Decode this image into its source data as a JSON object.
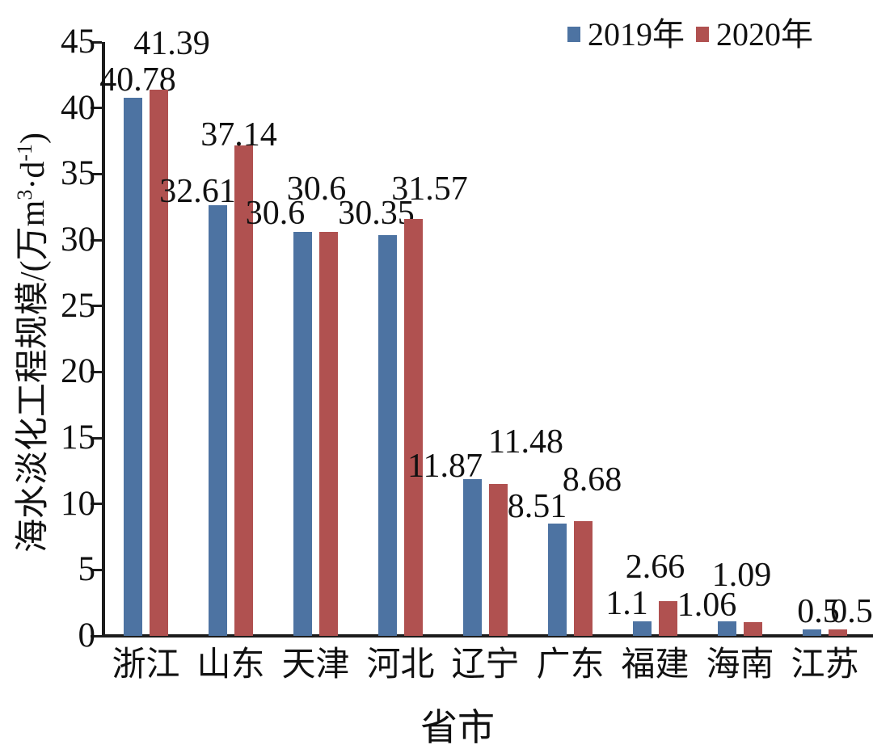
{
  "chart_data": {
    "type": "bar",
    "title": "",
    "categories": [
      "浙江",
      "山东",
      "天津",
      "河北",
      "辽宁",
      "广东",
      "福建",
      "海南",
      "江苏"
    ],
    "series": [
      {
        "name": "2019年",
        "color": "#4d73a2",
        "values": [
          40.78,
          32.61,
          30.6,
          30.35,
          11.87,
          8.51,
          1.1,
          1.09,
          0.5
        ]
      },
      {
        "name": "2020年",
        "color": "#b05150",
        "values": [
          41.39,
          37.14,
          30.6,
          31.57,
          11.48,
          8.68,
          2.66,
          1.06,
          0.5
        ]
      }
    ],
    "xlabel": "省市",
    "ylabel": "海水淡化工程规模/(万m³·d⁻¹)",
    "ylabel_parts": {
      "pre": "海水淡化工程规模/(万m",
      "sup1": "3",
      "mid": "·d",
      "sup2": "-1",
      "post": ")"
    },
    "ylim": [
      0,
      45
    ],
    "yticks": [
      0,
      5,
      10,
      15,
      20,
      25,
      30,
      35,
      40,
      45
    ],
    "grid": false,
    "legend_position": "top-right",
    "bar_value_labels": true,
    "axis_color": "#1c1c1c",
    "text_color": "#111111"
  }
}
